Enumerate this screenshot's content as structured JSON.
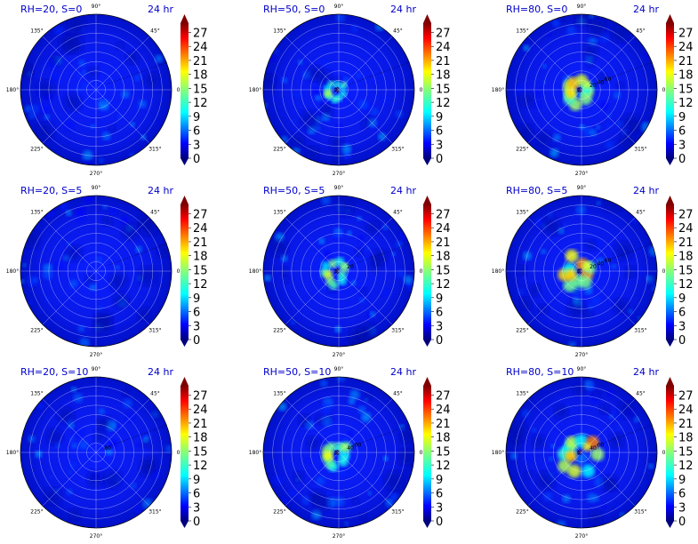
{
  "chart_data": {
    "type": "heatmap",
    "layout": {
      "rows": 3,
      "cols": 3
    },
    "angle_ticks": [
      "90°",
      "45°",
      "0°",
      "315°",
      "270°",
      "225°",
      "180°",
      "135°"
    ],
    "colorbar": {
      "ticks": [
        "0",
        "3",
        "6",
        "9",
        "12",
        "15",
        "18",
        "21",
        "24",
        "27"
      ],
      "range": [
        0,
        29
      ],
      "colormap": "jet",
      "extend": "both"
    },
    "panels": [
      {
        "title": "RH=20, S=0",
        "time": "24 hr",
        "radial_labels": [],
        "hotspot_intensity": 0.0
      },
      {
        "title": "RH=50, S=0",
        "time": "24 hr",
        "radial_labels": [],
        "hotspot_intensity": 0.2
      },
      {
        "title": "RH=80, S=0",
        "time": "24 hr",
        "radial_labels": [
          "20",
          "40",
          "60"
        ],
        "hotspot_intensity": 0.8
      },
      {
        "title": "RH=20, S=5",
        "time": "24 hr",
        "radial_labels": [],
        "hotspot_intensity": 0.1
      },
      {
        "title": "RH=50, S=5",
        "time": "24 hr",
        "radial_labels": [
          "20"
        ],
        "hotspot_intensity": 0.4
      },
      {
        "title": "RH=80, S=5",
        "time": "24 hr",
        "radial_labels": [
          "20",
          "40",
          "60"
        ],
        "hotspot_intensity": 0.85
      },
      {
        "title": "RH=20, S=10",
        "time": "24 hr",
        "radial_labels": [
          "80"
        ],
        "hotspot_intensity": 0.05
      },
      {
        "title": "RH=50, S=10",
        "time": "24 hr",
        "radial_labels": [
          "40",
          "60"
        ],
        "hotspot_intensity": 0.55
      },
      {
        "title": "RH=80, S=10",
        "time": "24 hr",
        "radial_labels": [
          "40",
          "60"
        ],
        "hotspot_intensity": 0.9
      }
    ]
  }
}
